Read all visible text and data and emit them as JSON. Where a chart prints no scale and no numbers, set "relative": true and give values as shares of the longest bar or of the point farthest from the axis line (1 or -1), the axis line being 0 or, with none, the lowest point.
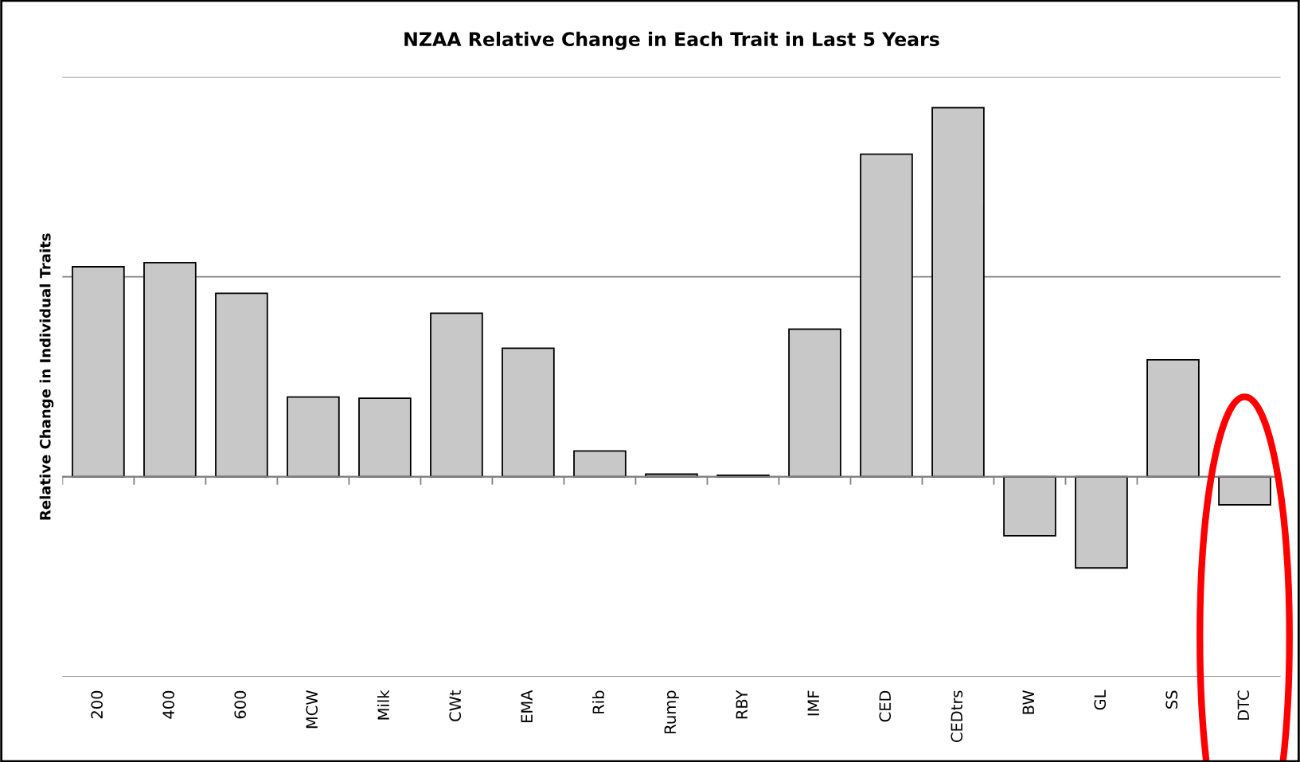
{
  "chart_data": {
    "type": "bar",
    "title": "NZAA Relative Change in Each Trait in Last 5 Years",
    "ylabel": "Relative Change in Individual Traits",
    "relative": true,
    "grid": "y",
    "color": "#c8c8c8",
    "categories": [
      "200",
      "400",
      "600",
      "MCW",
      "Milk",
      "CWt",
      "EMA",
      "Rib",
      "Rump",
      "RBY",
      "IMF",
      "CED",
      "CEDtrs",
      "BW",
      "GL",
      "SS",
      "DTC"
    ],
    "values": [
      0.569,
      0.58,
      0.497,
      0.216,
      0.213,
      0.443,
      0.348,
      0.07,
      0.007,
      0.004,
      0.4,
      0.874,
      1,
      -0.16,
      -0.247,
      0.317,
      -0.076
    ]
  }
}
